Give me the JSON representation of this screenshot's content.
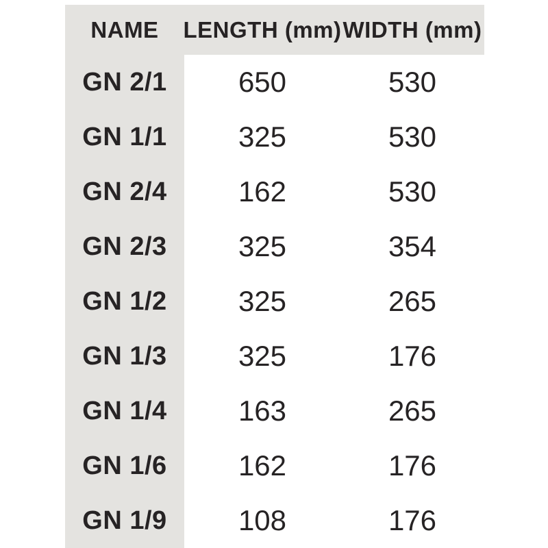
{
  "chart_data": {
    "type": "table",
    "title": "",
    "columns": [
      "NAME",
      "LENGTH (mm)",
      "WIDTH (mm)"
    ],
    "rows": [
      [
        "GN 2/1",
        "650",
        "530"
      ],
      [
        "GN 1/1",
        "325",
        "530"
      ],
      [
        "GN 2/4",
        "162",
        "530"
      ],
      [
        "GN 2/3",
        "325",
        "354"
      ],
      [
        "GN 1/2",
        "325",
        "265"
      ],
      [
        "GN 1/3",
        "325",
        "176"
      ],
      [
        "GN 1/4",
        "163",
        "265"
      ],
      [
        "GN 1/6",
        "162",
        "176"
      ],
      [
        "GN 1/9",
        "108",
        "176"
      ]
    ],
    "layout": {
      "header_and_first_column_shaded": true,
      "grid": "off",
      "cell_alignment": "center"
    }
  },
  "colors": {
    "page_bg": "#ffffff",
    "shaded_bg": "#e4e3e0",
    "text": "#262324"
  }
}
